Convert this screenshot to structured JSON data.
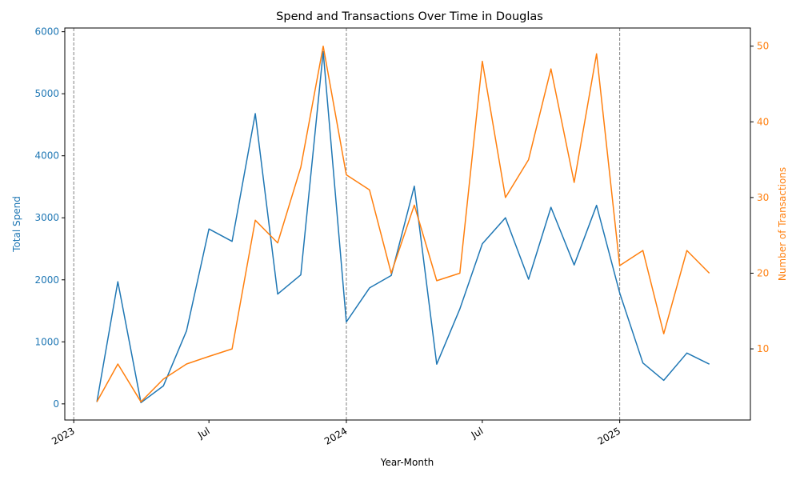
{
  "chart_data": {
    "type": "line",
    "title": "Spend and Transactions Over Time in Douglas",
    "xlabel": "Year-Month",
    "ylabel_left": "Total Spend",
    "ylabel_right": "Number of Transactions",
    "x_tick_labels": [
      "2023",
      "Jul",
      "2024",
      "Jul",
      "2025"
    ],
    "x_tick_dates": [
      "2023-01-01",
      "2023-07-01",
      "2024-01-01",
      "2024-07-01",
      "2025-01-01"
    ],
    "year_marker_dates": [
      "2023-01-01",
      "2024-01-01",
      "2025-01-01"
    ],
    "y_left_ticks": [
      0,
      1000,
      2000,
      3000,
      4000,
      5000,
      6000
    ],
    "y_left_lim": [
      -260,
      6060
    ],
    "y_right_ticks": [
      10,
      20,
      30,
      40,
      50
    ],
    "y_right_lim": [
      0.6,
      52.4
    ],
    "x_lim": [
      "2022-12-20",
      "2025-06-25"
    ],
    "colors": {
      "spend": "#1f77b4",
      "transactions": "#ff7f0e",
      "axis": "#000000",
      "year_marker": "#808080"
    },
    "x": [
      "2023-02-01",
      "2023-03-01",
      "2023-04-01",
      "2023-05-01",
      "2023-06-01",
      "2023-07-01",
      "2023-08-01",
      "2023-09-01",
      "2023-10-01",
      "2023-11-01",
      "2023-12-01",
      "2024-01-01",
      "2024-02-01",
      "2024-03-01",
      "2024-04-01",
      "2024-05-01",
      "2024-06-01",
      "2024-07-01",
      "2024-08-01",
      "2024-09-01",
      "2024-10-01",
      "2024-11-01",
      "2024-12-01",
      "2025-01-01",
      "2025-02-01",
      "2025-03-01",
      "2025-04-01",
      "2025-05-01"
    ],
    "series": [
      {
        "axis": "left",
        "values": [
          30,
          1970,
          20,
          290,
          1180,
          2820,
          2620,
          4680,
          1770,
          2080,
          5680,
          1320,
          1870,
          2070,
          3510,
          640,
          1530,
          2580,
          3000,
          2010,
          3170,
          2240,
          3200,
          1790,
          660,
          380,
          820,
          640
        ]
      },
      {
        "axis": "right",
        "values": [
          3,
          8,
          3,
          6,
          8,
          9,
          10,
          27,
          24,
          34,
          50,
          33,
          31,
          20,
          29,
          19,
          20,
          48,
          30,
          35,
          47,
          32,
          49,
          21,
          23,
          12,
          23,
          20
        ]
      }
    ]
  }
}
